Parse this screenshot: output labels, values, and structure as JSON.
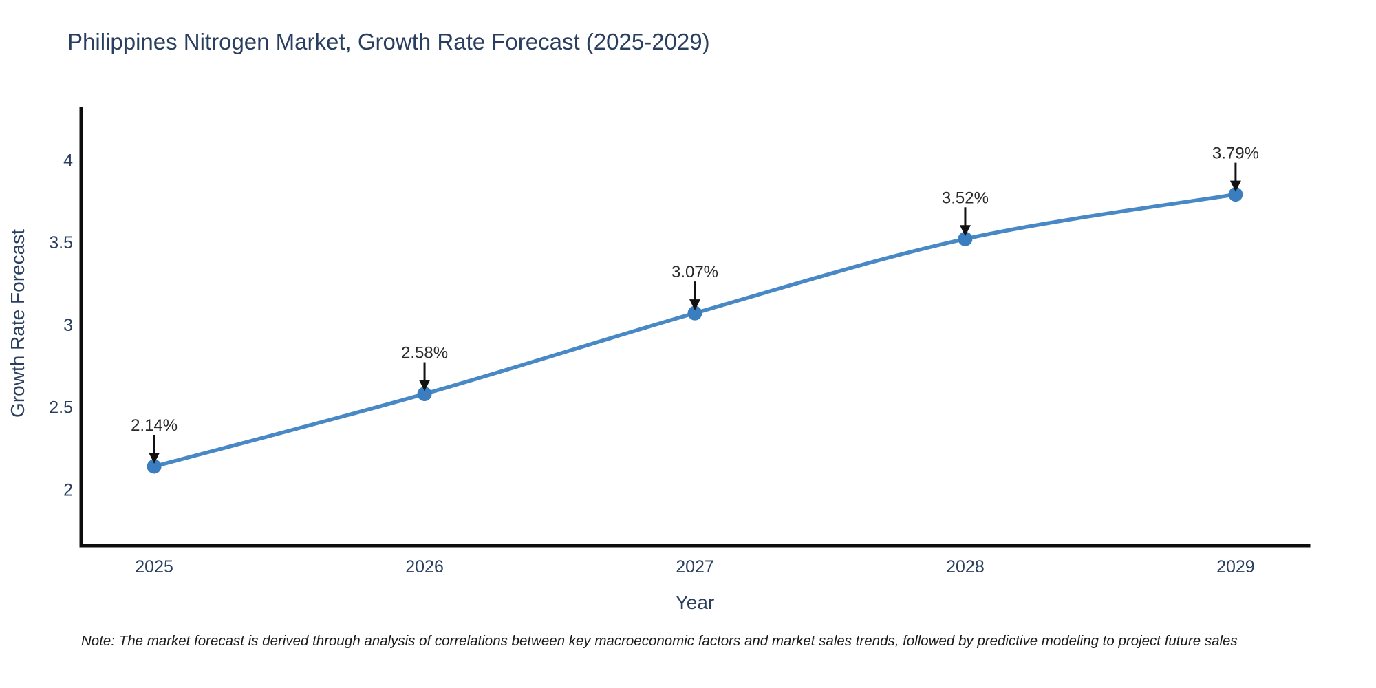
{
  "title": "Philippines Nitrogen Market, Growth Rate Forecast (2025-2029)",
  "note": "Note: The market forecast is derived through analysis of correlations between key macroeconomic factors and market sales trends, followed by predictive modeling to project future sales",
  "chart_data": {
    "type": "line",
    "title": "Philippines Nitrogen Market, Growth Rate Forecast (2025-2029)",
    "xlabel": "Year",
    "ylabel": "Growth Rate Forecast",
    "x": [
      2025,
      2026,
      2027,
      2028,
      2029
    ],
    "values": [
      2.14,
      2.58,
      3.07,
      3.52,
      3.79
    ],
    "point_labels": [
      "2.14%",
      "2.58%",
      "3.07%",
      "3.52%",
      "3.79%"
    ],
    "series_name": "Growth Rate Forecast",
    "yticks": [
      2,
      2.5,
      3,
      3.5,
      4
    ],
    "ylim": [
      1.66,
      4.31
    ],
    "xlim": [
      2024.73,
      2029.27
    ],
    "grid": false,
    "legend_position": "none",
    "line_shape": "spline",
    "colors": {
      "line": "#4788c5",
      "marker": "#3a7ec0",
      "axis_line": "#0d0d0d",
      "tick_text": "#2a3f5f",
      "annotation_text": "#2a2a2a",
      "arrow": "#111111",
      "title_text": "#2a3f5f"
    }
  }
}
